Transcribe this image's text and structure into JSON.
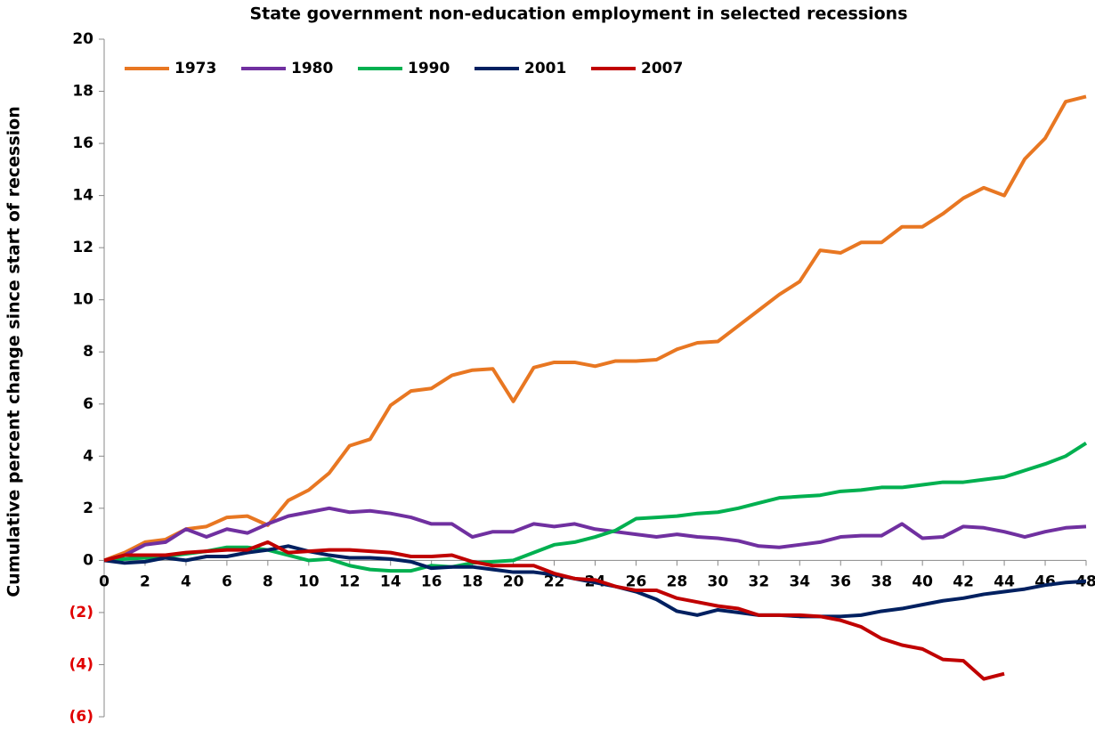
{
  "chart_data": {
    "type": "line",
    "title": "State government non-education employment in selected recessions",
    "y_label": "Cumulative percent change since start of recession",
    "x": [
      0,
      1,
      2,
      3,
      4,
      5,
      6,
      7,
      8,
      9,
      10,
      11,
      12,
      13,
      14,
      15,
      16,
      17,
      18,
      19,
      20,
      21,
      22,
      23,
      24,
      25,
      26,
      27,
      28,
      29,
      30,
      31,
      32,
      33,
      34,
      35,
      36,
      37,
      38,
      39,
      40,
      41,
      42,
      43,
      44,
      45,
      46,
      47,
      48
    ],
    "series": [
      {
        "name": "1973",
        "color": "#e87722",
        "values": [
          0,
          0.3,
          0.7,
          0.8,
          1.2,
          1.3,
          1.65,
          1.7,
          1.35,
          2.3,
          2.7,
          3.35,
          4.4,
          4.65,
          5.95,
          6.5,
          6.6,
          7.1,
          7.3,
          7.35,
          6.1,
          7.4,
          7.6,
          7.6,
          7.45,
          7.65,
          7.65,
          7.7,
          8.1,
          8.35,
          8.4,
          9.0,
          9.6,
          10.2,
          10.7,
          11.9,
          11.8,
          12.2,
          12.2,
          12.8,
          12.8,
          13.3,
          13.9,
          14.3,
          14.0,
          15.4,
          16.2,
          17.6,
          17.8
        ]
      },
      {
        "name": "1980",
        "color": "#7030a0",
        "values": [
          0,
          0.2,
          0.6,
          0.7,
          1.2,
          0.9,
          1.2,
          1.05,
          1.4,
          1.7,
          1.85,
          2.0,
          1.85,
          1.9,
          1.8,
          1.65,
          1.4,
          1.4,
          0.9,
          1.1,
          1.1,
          1.4,
          1.3,
          1.4,
          1.2,
          1.1,
          1.0,
          0.9,
          1.0,
          0.9,
          0.85,
          0.75,
          0.55,
          0.5,
          0.6,
          0.7,
          0.9,
          0.95,
          0.95,
          1.4,
          0.85,
          0.9,
          1.3,
          1.25,
          1.1,
          0.9,
          1.1,
          1.25,
          1.3
        ]
      },
      {
        "name": "1990",
        "color": "#00b050",
        "values": [
          0,
          0.05,
          0.1,
          0.15,
          0.25,
          0.35,
          0.5,
          0.5,
          0.4,
          0.2,
          0,
          0.05,
          -0.2,
          -0.35,
          -0.4,
          -0.4,
          -0.2,
          -0.25,
          -0.1,
          -0.05,
          0,
          0.3,
          0.6,
          0.7,
          0.9,
          1.15,
          1.6,
          1.65,
          1.7,
          1.8,
          1.85,
          2.0,
          2.2,
          2.4,
          2.45,
          2.5,
          2.65,
          2.7,
          2.8,
          2.8,
          2.9,
          3.0,
          3.0,
          3.1,
          3.2,
          3.45,
          3.7,
          4.0,
          4.5
        ]
      },
      {
        "name": "2001",
        "color": "#002060",
        "values": [
          0,
          -0.1,
          -0.05,
          0.1,
          0.0,
          0.15,
          0.15,
          0.3,
          0.4,
          0.55,
          0.35,
          0.2,
          0.1,
          0.1,
          0.05,
          -0.05,
          -0.3,
          -0.25,
          -0.25,
          -0.35,
          -0.45,
          -0.45,
          -0.55,
          -0.7,
          -0.85,
          -1.0,
          -1.2,
          -1.5,
          -1.95,
          -2.1,
          -1.9,
          -2.0,
          -2.1,
          -2.1,
          -2.15,
          -2.15,
          -2.15,
          -2.1,
          -1.95,
          -1.85,
          -1.7,
          -1.55,
          -1.45,
          -1.3,
          -1.2,
          -1.1,
          -0.95,
          -0.85,
          -0.8
        ]
      },
      {
        "name": "2007",
        "color": "#c00000",
        "values": [
          0,
          0.2,
          0.2,
          0.2,
          0.3,
          0.35,
          0.4,
          0.4,
          0.7,
          0.3,
          0.35,
          0.4,
          0.4,
          0.35,
          0.3,
          0.15,
          0.15,
          0.2,
          -0.05,
          -0.2,
          -0.2,
          -0.2,
          -0.5,
          -0.7,
          -0.75,
          -1.0,
          -1.15,
          -1.15,
          -1.45,
          -1.6,
          -1.75,
          -1.85,
          -2.1,
          -2.1,
          -2.1,
          -2.15,
          -2.3,
          -2.55,
          -3.0,
          -3.25,
          -3.4,
          -3.8,
          -3.85,
          -4.55,
          -4.35,
          null,
          null,
          null,
          null
        ]
      }
    ],
    "xlim": [
      0,
      48
    ],
    "xticks": [
      0,
      2,
      4,
      6,
      8,
      10,
      12,
      14,
      16,
      18,
      20,
      22,
      24,
      26,
      28,
      30,
      32,
      34,
      36,
      38,
      40,
      42,
      44,
      46,
      48
    ],
    "ylim": [
      -6,
      20
    ],
    "yticks": [
      {
        "value": -6,
        "label": "(6)"
      },
      {
        "value": -4,
        "label": "(4)"
      },
      {
        "value": -2,
        "label": "(2)"
      },
      0,
      2,
      4,
      6,
      8,
      10,
      12,
      14,
      16,
      18,
      20
    ],
    "negative_tick_label_color": "#e00000",
    "legend": "top-left"
  }
}
